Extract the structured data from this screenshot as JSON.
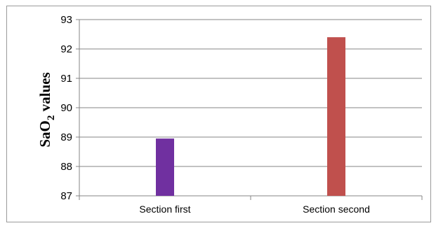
{
  "chart_data": {
    "type": "bar",
    "categories": [
      "Section first",
      "Section second"
    ],
    "values": [
      88.95,
      92.4
    ],
    "colors": [
      "#7030a0",
      "#c0504d"
    ],
    "ylabel_main": "SaO",
    "ylabel_sub": "2",
    "ylabel_rest": " values",
    "ylim": [
      87,
      93
    ],
    "yticks": [
      "87",
      "88",
      "89",
      "90",
      "91",
      "92",
      "93"
    ],
    "grid": true,
    "legend": "none"
  }
}
